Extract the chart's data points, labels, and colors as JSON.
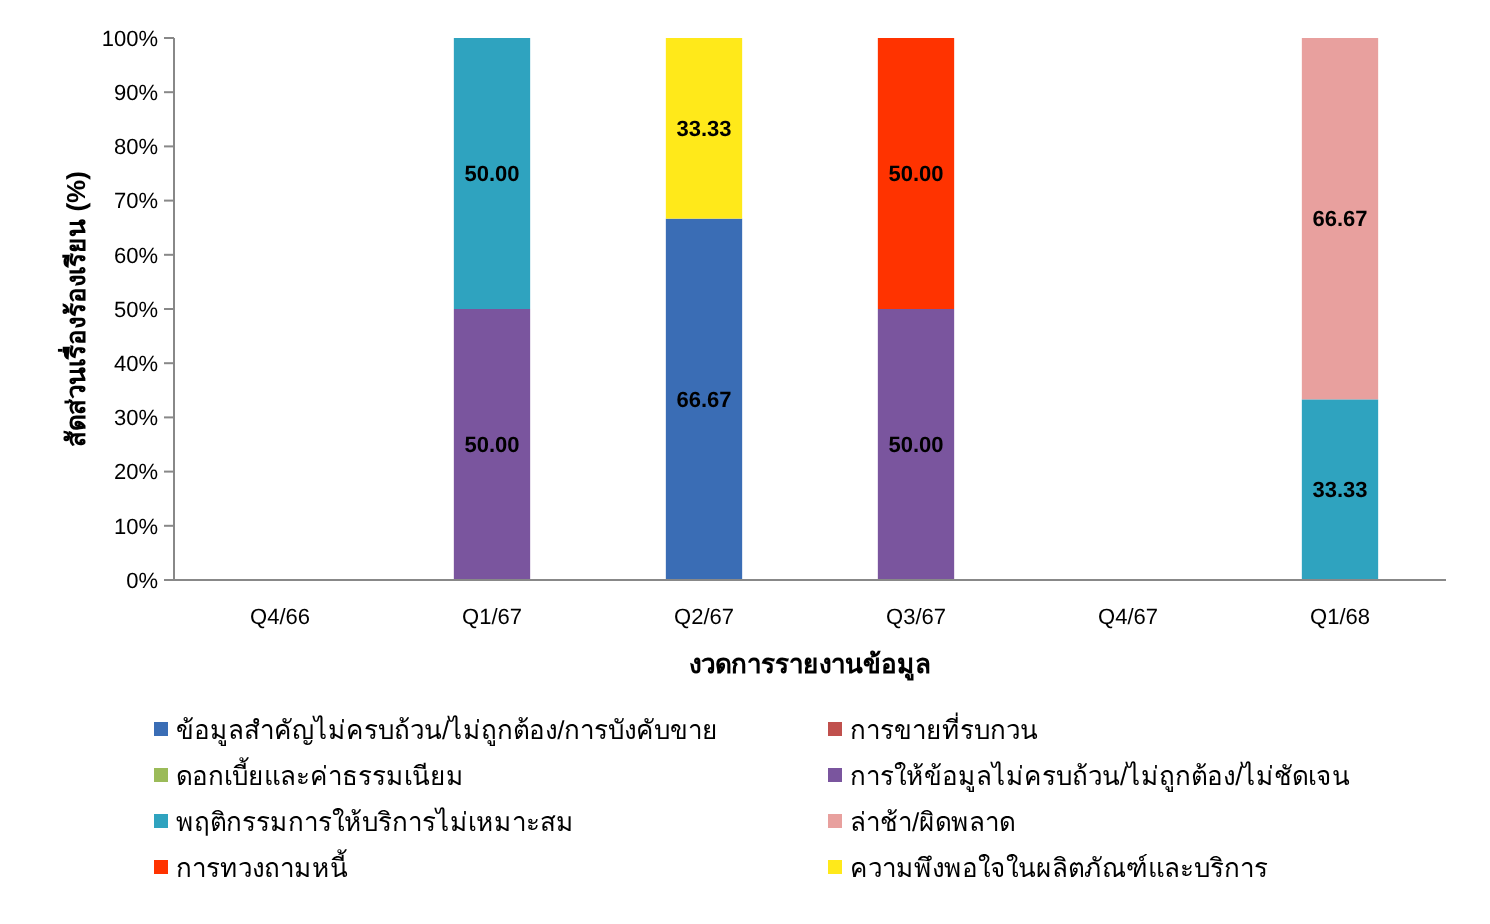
{
  "chart_data": {
    "type": "bar",
    "stacked": true,
    "xlabel": "งวดการรายงานข้อมูล",
    "ylabel": "สัดส่วนเรื่องร้องเรียน (%)",
    "categories": [
      "Q4/66",
      "Q1/67",
      "Q2/67",
      "Q3/67",
      "Q4/67",
      "Q1/68"
    ],
    "series": [
      {
        "name": "ข้อมูลสำคัญไม่ครบถ้วน/ไม่ถูกต้อง/การบังคับขาย",
        "color": "#3a6db5",
        "values": [
          null,
          null,
          66.67,
          null,
          null,
          null
        ],
        "value_labels": [
          null,
          null,
          "66.67",
          null,
          null,
          null
        ]
      },
      {
        "name": "การขายที่รบกวน",
        "color": "#c0504d",
        "values": [
          null,
          null,
          null,
          null,
          null,
          null
        ]
      },
      {
        "name": "ดอกเบี้ยและค่าธรรมเนียม",
        "color": "#9bbb59",
        "values": [
          null,
          null,
          null,
          null,
          null,
          null
        ]
      },
      {
        "name": "การให้ข้อมูลไม่ครบถ้วน/ไม่ถูกต้อง/ไม่ชัดเจน",
        "color": "#7a559e",
        "values": [
          null,
          50,
          null,
          50,
          null,
          null
        ],
        "value_labels": [
          null,
          "50.00",
          null,
          "50.00",
          null,
          null
        ]
      },
      {
        "name": "พฤติกรรมการให้บริการไม่เหมาะสม",
        "color": "#2fa3bf",
        "values": [
          null,
          50,
          null,
          null,
          null,
          33.33
        ],
        "value_labels": [
          null,
          "50.00",
          null,
          null,
          null,
          "33.33"
        ]
      },
      {
        "name": "ล่าช้า/ผิดพลาด",
        "color": "#e8a09e",
        "values": [
          null,
          null,
          null,
          null,
          null,
          66.67
        ],
        "value_labels": [
          null,
          null,
          null,
          null,
          null,
          "66.67"
        ]
      },
      {
        "name": "การทวงถามหนี้",
        "color": "#ff3300",
        "values": [
          null,
          null,
          null,
          50,
          null,
          null
        ],
        "value_labels": [
          null,
          null,
          null,
          "50.00",
          null,
          null
        ]
      },
      {
        "name": "ความพึงพอใจในผลิตภัณฑ์และบริการ",
        "color": "#ffe91a",
        "values": [
          null,
          null,
          33.33,
          null,
          null,
          null
        ],
        "value_labels": [
          null,
          null,
          "33.33",
          null,
          null,
          null
        ]
      }
    ],
    "ylim": [
      0,
      100
    ],
    "yticks": [
      {
        "value": 0,
        "label": "0%"
      },
      {
        "value": 10,
        "label": "10%"
      },
      {
        "value": 20,
        "label": "20%"
      },
      {
        "value": 30,
        "label": "30%"
      },
      {
        "value": 40,
        "label": "40%"
      },
      {
        "value": 50,
        "label": "50%"
      },
      {
        "value": 60,
        "label": "60%"
      },
      {
        "value": 70,
        "label": "70%"
      },
      {
        "value": 80,
        "label": "80%"
      },
      {
        "value": 90,
        "label": "90%"
      },
      {
        "value": 100,
        "label": "100%"
      }
    ],
    "grid": false,
    "legend": "bottom"
  }
}
